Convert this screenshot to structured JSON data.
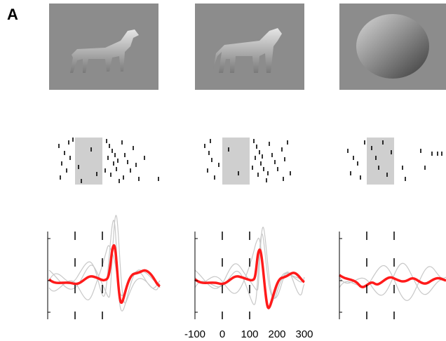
{
  "panel_label": "A",
  "x_axis": {
    "xlim": [
      -100,
      300
    ],
    "xticks": [
      -100,
      0,
      100,
      200,
      300
    ]
  }
}
